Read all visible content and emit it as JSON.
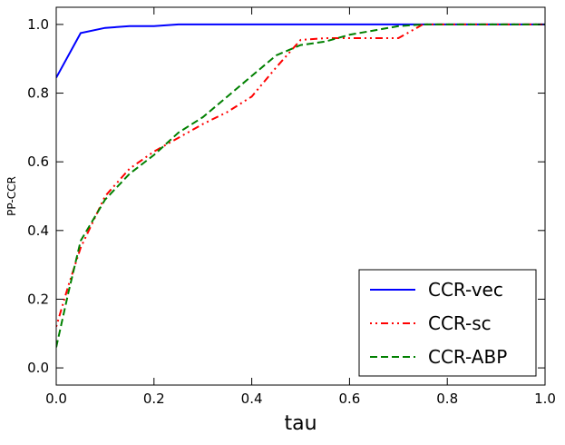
{
  "chart_data": {
    "type": "line",
    "title": "",
    "xlabel": "tau",
    "ylabel": "PP-CCR",
    "xlim": [
      0,
      1
    ],
    "ylim": [
      -0.05,
      1.05
    ],
    "xticks": [
      0.0,
      0.2,
      0.4,
      0.6,
      0.8,
      1.0
    ],
    "xtick_labels": [
      "0.0",
      "0.2",
      "0.4",
      "0.6",
      "0.8",
      "1.0"
    ],
    "yticks": [
      0.0,
      0.2,
      0.4,
      0.6,
      0.8,
      1.0
    ],
    "ytick_labels": [
      "0.0",
      "0.2",
      "0.4",
      "0.6",
      "0.8",
      "1.0"
    ],
    "grid": false,
    "legend_position": "bottom-right",
    "series": [
      {
        "name": "CCR-vec",
        "color": "#0000ff",
        "style": "solid",
        "x": [
          0.0,
          0.05,
          0.1,
          0.15,
          0.2,
          0.25,
          0.3,
          0.4,
          0.5,
          0.6,
          0.7,
          0.8,
          1.0
        ],
        "y": [
          0.845,
          0.975,
          0.99,
          0.995,
          0.995,
          1.0,
          1.0,
          1.0,
          1.0,
          1.0,
          1.0,
          1.0,
          1.0
        ]
      },
      {
        "name": "CCR-sc",
        "color": "#ff0000",
        "style": "dashdot",
        "x": [
          0.0,
          0.025,
          0.05,
          0.1,
          0.15,
          0.2,
          0.25,
          0.3,
          0.35,
          0.4,
          0.45,
          0.5,
          0.55,
          0.6,
          0.7,
          0.75,
          0.8,
          1.0
        ],
        "y": [
          0.12,
          0.24,
          0.35,
          0.5,
          0.58,
          0.63,
          0.67,
          0.71,
          0.745,
          0.79,
          0.875,
          0.955,
          0.96,
          0.96,
          0.96,
          1.0,
          1.0,
          1.0
        ]
      },
      {
        "name": "CCR-ABP",
        "color": "#008000",
        "style": "dashed",
        "x": [
          0.0,
          0.025,
          0.05,
          0.1,
          0.15,
          0.2,
          0.25,
          0.3,
          0.35,
          0.4,
          0.45,
          0.5,
          0.55,
          0.6,
          0.7,
          0.75,
          0.8,
          1.0
        ],
        "y": [
          0.06,
          0.22,
          0.37,
          0.49,
          0.565,
          0.62,
          0.685,
          0.73,
          0.79,
          0.85,
          0.91,
          0.94,
          0.95,
          0.97,
          0.995,
          1.0,
          1.0,
          1.0
        ]
      }
    ]
  }
}
